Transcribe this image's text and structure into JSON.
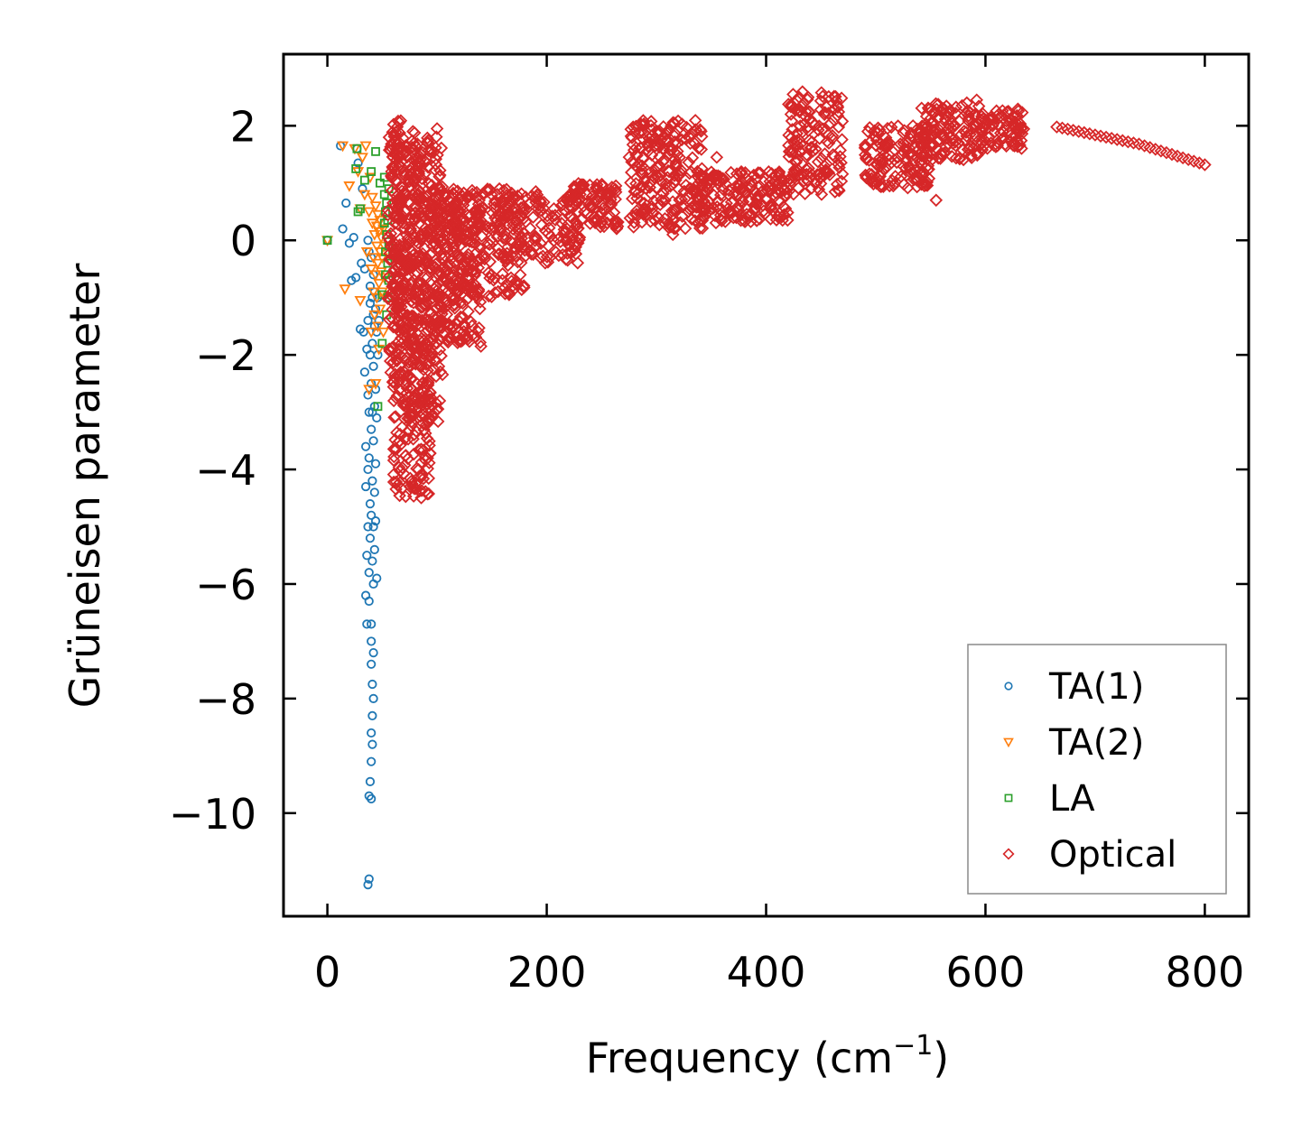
{
  "chart_data": {
    "type": "scatter",
    "title": "",
    "xlabel": "Frequency (cm",
    "xlabel_sup": "−1",
    "xlabel_end": ")",
    "ylabel": "Grüneisen parameter",
    "xlim": [
      -40,
      840
    ],
    "ylim": [
      -11.8,
      3.25
    ],
    "x_ticks": [
      0,
      200,
      400,
      600,
      800
    ],
    "x_tick_labels": [
      "0",
      "200",
      "400",
      "600",
      "800"
    ],
    "y_ticks": [
      2,
      0,
      -2,
      -4,
      -6,
      -8,
      -10
    ],
    "y_tick_labels": [
      "2",
      "0",
      "−2",
      "−4",
      "−6",
      "−8",
      "−10"
    ],
    "grid": false,
    "legend_position": "lower-right",
    "series": [
      {
        "name": "TA(1)",
        "marker": "circle",
        "color": "#1f77b4",
        "points": [
          [
            0,
            0
          ],
          [
            12,
            1.65
          ],
          [
            14,
            0.2
          ],
          [
            17,
            0.65
          ],
          [
            20,
            -0.05
          ],
          [
            22,
            -0.7
          ],
          [
            24,
            0.05
          ],
          [
            26,
            -0.65
          ],
          [
            27,
            1.6
          ],
          [
            28,
            1.35
          ],
          [
            30,
            -1.55
          ],
          [
            31,
            -0.4
          ],
          [
            32,
            0.9
          ],
          [
            33,
            -1.6
          ],
          [
            34,
            -2.3
          ],
          [
            34,
            -0.5
          ],
          [
            35,
            -3.6
          ],
          [
            35,
            -4.3
          ],
          [
            35,
            -6.2
          ],
          [
            36,
            -1.9
          ],
          [
            36,
            -5.5
          ],
          [
            36,
            -6.7
          ],
          [
            37,
            -11.25
          ],
          [
            37,
            0.0
          ],
          [
            37,
            -1.4
          ],
          [
            37,
            -2.7
          ],
          [
            37,
            -4.0
          ],
          [
            37,
            -5.0
          ],
          [
            38,
            -11.15
          ],
          [
            38,
            -0.2
          ],
          [
            38,
            -3.0
          ],
          [
            38,
            -3.8
          ],
          [
            38,
            -5.8
          ],
          [
            38,
            -6.3
          ],
          [
            38,
            -9.7
          ],
          [
            39,
            -0.8
          ],
          [
            39,
            -2.0
          ],
          [
            39,
            -4.6
          ],
          [
            39,
            -5.2
          ],
          [
            39,
            -9.45
          ],
          [
            39,
            -1.1
          ],
          [
            40,
            -2.5
          ],
          [
            40,
            -3.3
          ],
          [
            40,
            -4.8
          ],
          [
            40,
            -6.7
          ],
          [
            40,
            -7.0
          ],
          [
            40,
            -7.4
          ],
          [
            40,
            -8.6
          ],
          [
            40,
            -9.1
          ],
          [
            40,
            -9.75
          ],
          [
            40,
            -0.3
          ],
          [
            41,
            -1.0
          ],
          [
            41,
            -1.8
          ],
          [
            41,
            -3.0
          ],
          [
            41,
            -4.2
          ],
          [
            41,
            -5.6
          ],
          [
            41,
            -7.75
          ],
          [
            41,
            -8.3
          ],
          [
            41,
            -8.8
          ],
          [
            42,
            -0.6
          ],
          [
            42,
            -1.3
          ],
          [
            42,
            -2.2
          ],
          [
            42,
            -3.5
          ],
          [
            42,
            -5.0
          ],
          [
            42,
            -6.0
          ],
          [
            42,
            -7.2
          ],
          [
            42,
            -8.0
          ],
          [
            43,
            -0.9
          ],
          [
            43,
            -1.5
          ],
          [
            43,
            -2.9
          ],
          [
            43,
            -4.4
          ],
          [
            43,
            -5.4
          ],
          [
            44,
            -1.2
          ],
          [
            44,
            -2.6
          ],
          [
            44,
            -3.9
          ],
          [
            44,
            -4.9
          ],
          [
            45,
            -1.6
          ],
          [
            45,
            -3.1
          ],
          [
            45,
            -5.9
          ],
          [
            46,
            -2.0
          ],
          [
            46,
            -1.0
          ],
          [
            47,
            -1.4
          ]
        ]
      },
      {
        "name": "TA(2)",
        "marker": "triangle-down",
        "color": "#ff7f0e",
        "points": [
          [
            0,
            0
          ],
          [
            14,
            1.65
          ],
          [
            16,
            -0.85
          ],
          [
            20,
            0.95
          ],
          [
            25,
            1.6
          ],
          [
            28,
            1.2
          ],
          [
            30,
            0.55
          ],
          [
            30,
            -1.05
          ],
          [
            32,
            1.45
          ],
          [
            34,
            0.8
          ],
          [
            35,
            1.65
          ],
          [
            36,
            -0.2
          ],
          [
            38,
            0.5
          ],
          [
            38,
            -2.6
          ],
          [
            39,
            1.1
          ],
          [
            40,
            -0.5
          ],
          [
            40,
            -1.6
          ],
          [
            41,
            0.3
          ],
          [
            41,
            0.75
          ],
          [
            42,
            -0.3
          ],
          [
            42,
            -0.9
          ],
          [
            43,
            0.1
          ],
          [
            43,
            -1.3
          ],
          [
            44,
            0.6
          ],
          [
            44,
            -0.6
          ],
          [
            44,
            -2.5
          ],
          [
            45,
            0.25
          ],
          [
            45,
            -0.1
          ],
          [
            45,
            -1.0
          ],
          [
            46,
            0.45
          ],
          [
            46,
            -0.4
          ],
          [
            46,
            -1.5
          ],
          [
            47,
            0.15
          ],
          [
            47,
            -0.75
          ],
          [
            47,
            -1.9
          ],
          [
            48,
            0.35
          ],
          [
            48,
            -0.2
          ],
          [
            48,
            -1.2
          ],
          [
            49,
            0.05
          ],
          [
            49,
            -0.55
          ],
          [
            50,
            -0.3
          ],
          [
            50,
            -0.9
          ],
          [
            51,
            0.2
          ],
          [
            51,
            -1.6
          ],
          [
            52,
            -0.1
          ],
          [
            52,
            -0.65
          ]
        ]
      },
      {
        "name": "LA",
        "marker": "square",
        "color": "#2ca02c",
        "points": [
          [
            0,
            0
          ],
          [
            26,
            1.25
          ],
          [
            27,
            1.6
          ],
          [
            28,
            0.5
          ],
          [
            30,
            0.55
          ],
          [
            34,
            1.05
          ],
          [
            40,
            1.2
          ],
          [
            44,
            1.55
          ],
          [
            46,
            -2.9
          ],
          [
            48,
            1.0
          ],
          [
            50,
            -0.95
          ],
          [
            50,
            -1.8
          ],
          [
            52,
            1.1
          ],
          [
            52,
            0.8
          ],
          [
            52,
            0.3
          ],
          [
            53,
            0.5
          ],
          [
            53,
            -0.2
          ],
          [
            53,
            -0.6
          ],
          [
            54,
            0.1
          ],
          [
            54,
            0.65
          ],
          [
            54,
            -1.3
          ],
          [
            55,
            0.35
          ],
          [
            55,
            -0.4
          ],
          [
            55,
            -1.0
          ],
          [
            56,
            0.9
          ],
          [
            56,
            -0.1
          ],
          [
            56,
            -0.7
          ]
        ]
      },
      {
        "name": "Optical",
        "marker": "diamond",
        "color": "#d62728",
        "regions": [
          {
            "x": [
              55,
              70
            ],
            "y": [
              -2.5,
              2.1
            ],
            "n": 140
          },
          {
            "x": [
              60,
              95
            ],
            "y": [
              -4.5,
              1.8
            ],
            "n": 340
          },
          {
            "x": [
              70,
              105
            ],
            "y": [
              -3.2,
              1.9
            ],
            "n": 260
          },
          {
            "x": [
              95,
              140
            ],
            "y": [
              -1.8,
              0.9
            ],
            "n": 220
          },
          {
            "x": [
              110,
              180
            ],
            "y": [
              -1.0,
              0.9
            ],
            "n": 200
          },
          {
            "x": [
              150,
              230
            ],
            "y": [
              -0.4,
              0.8
            ],
            "n": 150
          },
          {
            "x": [
              220,
              265
            ],
            "y": [
              0.2,
              1.0
            ],
            "n": 90
          },
          {
            "x": [
              275,
              345
            ],
            "y": [
              0.2,
              2.1
            ],
            "n": 230
          },
          {
            "x": [
              330,
              420
            ],
            "y": [
              0.3,
              1.2
            ],
            "n": 200
          },
          {
            "x": [
              420,
              470
            ],
            "y": [
              0.8,
              2.6
            ],
            "n": 150
          },
          {
            "x": [
              490,
              550
            ],
            "y": [
              0.9,
              2.0
            ],
            "n": 150
          },
          {
            "x": [
              540,
              600
            ],
            "y": [
              1.4,
              2.4
            ],
            "n": 130
          },
          {
            "x": [
              595,
              635
            ],
            "y": [
              1.6,
              2.3
            ],
            "n": 80
          }
        ],
        "tail_points": [
          [
            665,
            1.98
          ],
          [
            670,
            1.96
          ],
          [
            675,
            1.94
          ],
          [
            680,
            1.92
          ],
          [
            685,
            1.9
          ],
          [
            690,
            1.88
          ],
          [
            695,
            1.86
          ],
          [
            700,
            1.84
          ],
          [
            705,
            1.82
          ],
          [
            710,
            1.8
          ],
          [
            715,
            1.78
          ],
          [
            720,
            1.76
          ],
          [
            725,
            1.74
          ],
          [
            730,
            1.72
          ],
          [
            735,
            1.7
          ],
          [
            740,
            1.68
          ],
          [
            745,
            1.65
          ],
          [
            750,
            1.62
          ],
          [
            755,
            1.59
          ],
          [
            760,
            1.56
          ],
          [
            765,
            1.53
          ],
          [
            770,
            1.5
          ],
          [
            775,
            1.47
          ],
          [
            780,
            1.44
          ],
          [
            785,
            1.41
          ],
          [
            790,
            1.38
          ],
          [
            795,
            1.35
          ],
          [
            800,
            1.32
          ]
        ],
        "outliers": [
          [
            78,
            1.9
          ],
          [
            100,
            1.95
          ],
          [
            125,
            -1.5
          ],
          [
            140,
            -1.85
          ],
          [
            190,
            0.85
          ],
          [
            230,
            0.05
          ],
          [
            315,
            0.1
          ],
          [
            355,
            1.45
          ],
          [
            415,
            0.35
          ],
          [
            555,
            0.7
          ],
          [
            583,
            2.4
          ],
          [
            592,
            2.45
          ]
        ]
      }
    ]
  }
}
